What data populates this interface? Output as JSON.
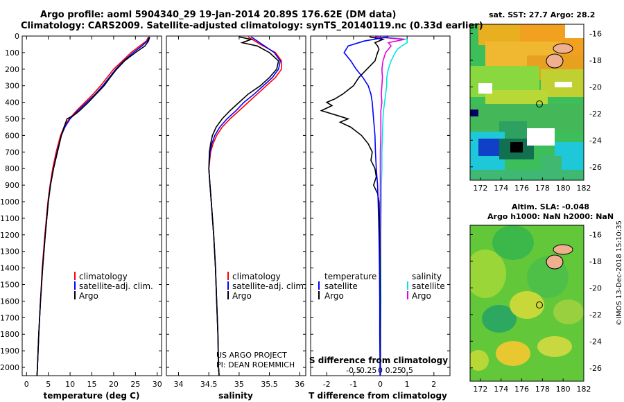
{
  "header": {
    "line1": "Argo profile: aoml 5904340_29 19-Jan-2014 20.89S 176.62E (DM data)",
    "line2": "Climatology: CARS2009. Satellite-adjusted climatology: synTS_20140119.nc (0.33d earlier)"
  },
  "credit": {
    "project": "US ARGO PROJECT",
    "pi": "PI: DEAN ROEMMICH"
  },
  "stamp": "©IMOS 13-Dec-2018 15:10:35",
  "colors": {
    "climatology": "#ff0000",
    "satellite": "#0000ff",
    "argo": "#000000",
    "sal_sat": "#00e5e5",
    "sal_argo": "#e000e0"
  },
  "maps": {
    "sst": {
      "title": "sat. SST: 27.7 Argo: 28.2",
      "lat_ticks": [
        "-16",
        "-18",
        "-20",
        "-22",
        "-24",
        "-26"
      ],
      "lon_ticks": [
        "172",
        "174",
        "176",
        "178",
        "180",
        "182"
      ]
    },
    "sla": {
      "title1": "Altim. SLA: -0.048",
      "title2": "Argo h1000: NaN h2000: NaN",
      "lat_ticks": [
        "-16",
        "-18",
        "-20",
        "-22",
        "-24",
        "-26"
      ],
      "lon_ticks": [
        "172",
        "174",
        "176",
        "178",
        "180",
        "182"
      ]
    }
  },
  "chart_data": [
    {
      "type": "line",
      "xlabel": "temperature (deg C)",
      "ylim": [
        0,
        2050
      ],
      "xlim": [
        -1,
        31
      ],
      "x_ticks": [
        "0",
        "5",
        "10",
        "15",
        "20",
        "25",
        "30"
      ],
      "y_ticks": [
        "0",
        "100",
        "200",
        "300",
        "400",
        "500",
        "600",
        "700",
        "800",
        "900",
        "1000",
        "1100",
        "1200",
        "1300",
        "1400",
        "1500",
        "1600",
        "1700",
        "1800",
        "1900",
        "2000"
      ],
      "legend": [
        "climatology",
        "satellite-adj. clim.",
        "Argo"
      ],
      "series": [
        {
          "name": "climatology",
          "depth": [
            5,
            30,
            60,
            100,
            150,
            200,
            250,
            300,
            350,
            400,
            450,
            500,
            550,
            600,
            700,
            800,
            900,
            1000,
            1200,
            1400,
            1600,
            1800,
            2000,
            2050
          ],
          "values": [
            28,
            27.5,
            26,
            24,
            22,
            20,
            18.5,
            17,
            15.3,
            13.4,
            11.5,
            9.8,
            8.6,
            7.8,
            6.8,
            6.0,
            5.4,
            4.9,
            4.2,
            3.6,
            3.2,
            2.8,
            2.5,
            2.4
          ]
        },
        {
          "name": "satellite-adj. clim.",
          "depth": [
            5,
            30,
            60,
            100,
            150,
            200,
            250,
            300,
            350,
            400,
            450,
            500,
            550,
            600,
            700,
            800,
            900,
            1000,
            1200,
            1400,
            1600,
            1800,
            2000,
            2050
          ],
          "values": [
            28.2,
            27.7,
            26.5,
            24.5,
            22.3,
            20.5,
            19,
            17.5,
            15.8,
            13.8,
            11.8,
            10,
            8.8,
            8,
            7,
            6.2,
            5.5,
            5,
            4.3,
            3.7,
            3.2,
            2.8,
            2.5,
            2.4
          ]
        },
        {
          "name": "Argo",
          "depth": [
            5,
            30,
            60,
            100,
            150,
            200,
            250,
            300,
            350,
            400,
            450,
            480,
            500,
            550,
            600,
            700,
            800,
            900,
            1000,
            1200,
            1400,
            1600,
            1800,
            2000,
            2050
          ],
          "values": [
            28.3,
            28,
            27.2,
            25,
            22.5,
            20.7,
            19.2,
            17.8,
            16,
            14.2,
            12.2,
            10.8,
            9.3,
            8.6,
            8,
            7.1,
            6.2,
            5.5,
            5,
            4.3,
            3.7,
            3.2,
            2.8,
            2.5,
            2.4
          ]
        }
      ]
    },
    {
      "type": "line",
      "xlabel": "salinity",
      "xlim": [
        33.8,
        36.1
      ],
      "ylim": [
        0,
        2050
      ],
      "x_ticks": [
        "34",
        "34.5",
        "35",
        "35.5",
        "36"
      ],
      "legend": [
        "climatology",
        "satellite-adj. clim.",
        "Argo"
      ],
      "series": [
        {
          "name": "climatology",
          "depth": [
            5,
            50,
            100,
            150,
            200,
            250,
            300,
            350,
            400,
            450,
            500,
            550,
            600,
            650,
            700,
            800,
            900,
            1000,
            1200,
            1400,
            1600,
            1800,
            2000,
            2050
          ],
          "values": [
            35.15,
            35.35,
            35.6,
            35.7,
            35.7,
            35.6,
            35.45,
            35.3,
            35.15,
            35,
            34.85,
            34.72,
            34.63,
            34.57,
            34.53,
            34.5,
            34.52,
            34.54,
            34.58,
            34.61,
            34.63,
            34.65,
            34.66,
            34.67
          ]
        },
        {
          "name": "satellite-adj. clim.",
          "depth": [
            5,
            50,
            100,
            150,
            200,
            250,
            300,
            350,
            400,
            450,
            500,
            550,
            600,
            650,
            700,
            800,
            900,
            1000,
            1200,
            1400,
            1600,
            1800,
            2000,
            2050
          ],
          "values": [
            35.2,
            35.38,
            35.58,
            35.68,
            35.65,
            35.55,
            35.4,
            35.25,
            35.08,
            34.95,
            34.8,
            34.68,
            34.6,
            34.55,
            34.52,
            34.5,
            34.52,
            34.54,
            34.58,
            34.61,
            34.63,
            34.65,
            34.66,
            34.67
          ]
        },
        {
          "name": "Argo",
          "depth": [
            5,
            20,
            40,
            60,
            100,
            150,
            200,
            250,
            300,
            350,
            400,
            450,
            500,
            550,
            600,
            650,
            700,
            800,
            900,
            1000,
            1200,
            1400,
            1600,
            1800,
            2000,
            2050
          ],
          "values": [
            35.0,
            35.2,
            35.05,
            35.3,
            35.5,
            35.65,
            35.62,
            35.5,
            35.35,
            35.15,
            35,
            34.85,
            34.72,
            34.62,
            34.56,
            34.53,
            34.51,
            34.5,
            34.52,
            34.54,
            34.58,
            34.61,
            34.63,
            34.65,
            34.66,
            34.67
          ]
        }
      ]
    },
    {
      "type": "line",
      "xlabel": "T difference from climatology",
      "xlabel2": "S difference from climatology",
      "xlim": [
        -2.6,
        2.6
      ],
      "ylim": [
        0,
        2050
      ],
      "x_ticks": [
        "-2",
        "-1",
        "0",
        "1",
        "2"
      ],
      "s_ticks": [
        "-0.5",
        "-0.25",
        "0",
        "0.25",
        "0.5"
      ],
      "legend_left_title": "temperature",
      "legend_right_title": "salinity",
      "legend": [
        "satellite",
        "Argo",
        "satellite",
        "Argo"
      ],
      "series": [
        {
          "name": "satellite",
          "depth": [
            5,
            30,
            60,
            100,
            150,
            200,
            250,
            300,
            350,
            400,
            500,
            600,
            700,
            800,
            900,
            1000,
            1200,
            1400,
            1600,
            1800,
            2000,
            2050
          ],
          "values": [
            0.3,
            -0.6,
            -1.2,
            -1.35,
            -1.1,
            -0.9,
            -0.65,
            -0.45,
            -0.35,
            -0.3,
            -0.25,
            -0.2,
            -0.18,
            -0.15,
            -0.1,
            -0.08,
            -0.05,
            -0.03,
            -0.02,
            -0.02,
            -0.01,
            -0.01
          ]
        },
        {
          "name": "Argo",
          "depth": [
            5,
            20,
            40,
            60,
            80,
            100,
            150,
            200,
            250,
            300,
            350,
            380,
            400,
            420,
            450,
            480,
            500,
            520,
            550,
            600,
            650,
            700,
            750,
            800,
            850,
            900,
            950,
            1000,
            1100,
            1200,
            1400,
            1600,
            2000,
            2050
          ],
          "values": [
            -0.4,
            0.1,
            -0.2,
            -0.1,
            -0.05,
            -0.1,
            -0.2,
            -0.5,
            -0.8,
            -1.0,
            -1.4,
            -1.7,
            -2.0,
            -1.8,
            -2.2,
            -1.6,
            -1.2,
            -1.5,
            -1.1,
            -0.7,
            -0.45,
            -0.3,
            -0.35,
            -0.2,
            -0.15,
            -0.25,
            -0.1,
            -0.05,
            -0.03,
            -0.02,
            -0.01,
            0,
            0,
            0
          ]
        },
        {
          "name": "satellite",
          "depth": [
            5,
            20,
            40,
            60,
            80,
            100,
            150,
            200,
            250,
            300,
            350,
            400,
            450,
            500,
            600,
            700,
            800,
            900,
            1000,
            1200,
            1400,
            1600,
            1800,
            2000,
            2050
          ],
          "values": [
            0.05,
            0.5,
            0.5,
            0.4,
            0.32,
            0.28,
            0.2,
            0.15,
            0.12,
            0.12,
            0.1,
            0.08,
            0.06,
            0.05,
            0.04,
            0.03,
            0.03,
            0.02,
            0.02,
            0.01,
            0.01,
            0.01,
            0.005,
            0.005,
            0.005
          ]
        },
        {
          "name": "Argo",
          "depth": [
            5,
            20,
            40,
            60,
            80,
            100,
            150,
            200,
            250,
            300,
            350,
            400,
            450,
            500,
            600,
            700,
            800,
            900,
            1000,
            1200,
            1400,
            1600,
            1800,
            2000,
            2050
          ],
          "values": [
            -0.1,
            0.45,
            0.15,
            0.2,
            0.15,
            0.1,
            0.05,
            0.03,
            0.04,
            0.03,
            0.02,
            0.03,
            0.01,
            0.01,
            0.01,
            0,
            0,
            0,
            0,
            0,
            0,
            0,
            0,
            0,
            0
          ]
        }
      ]
    }
  ]
}
